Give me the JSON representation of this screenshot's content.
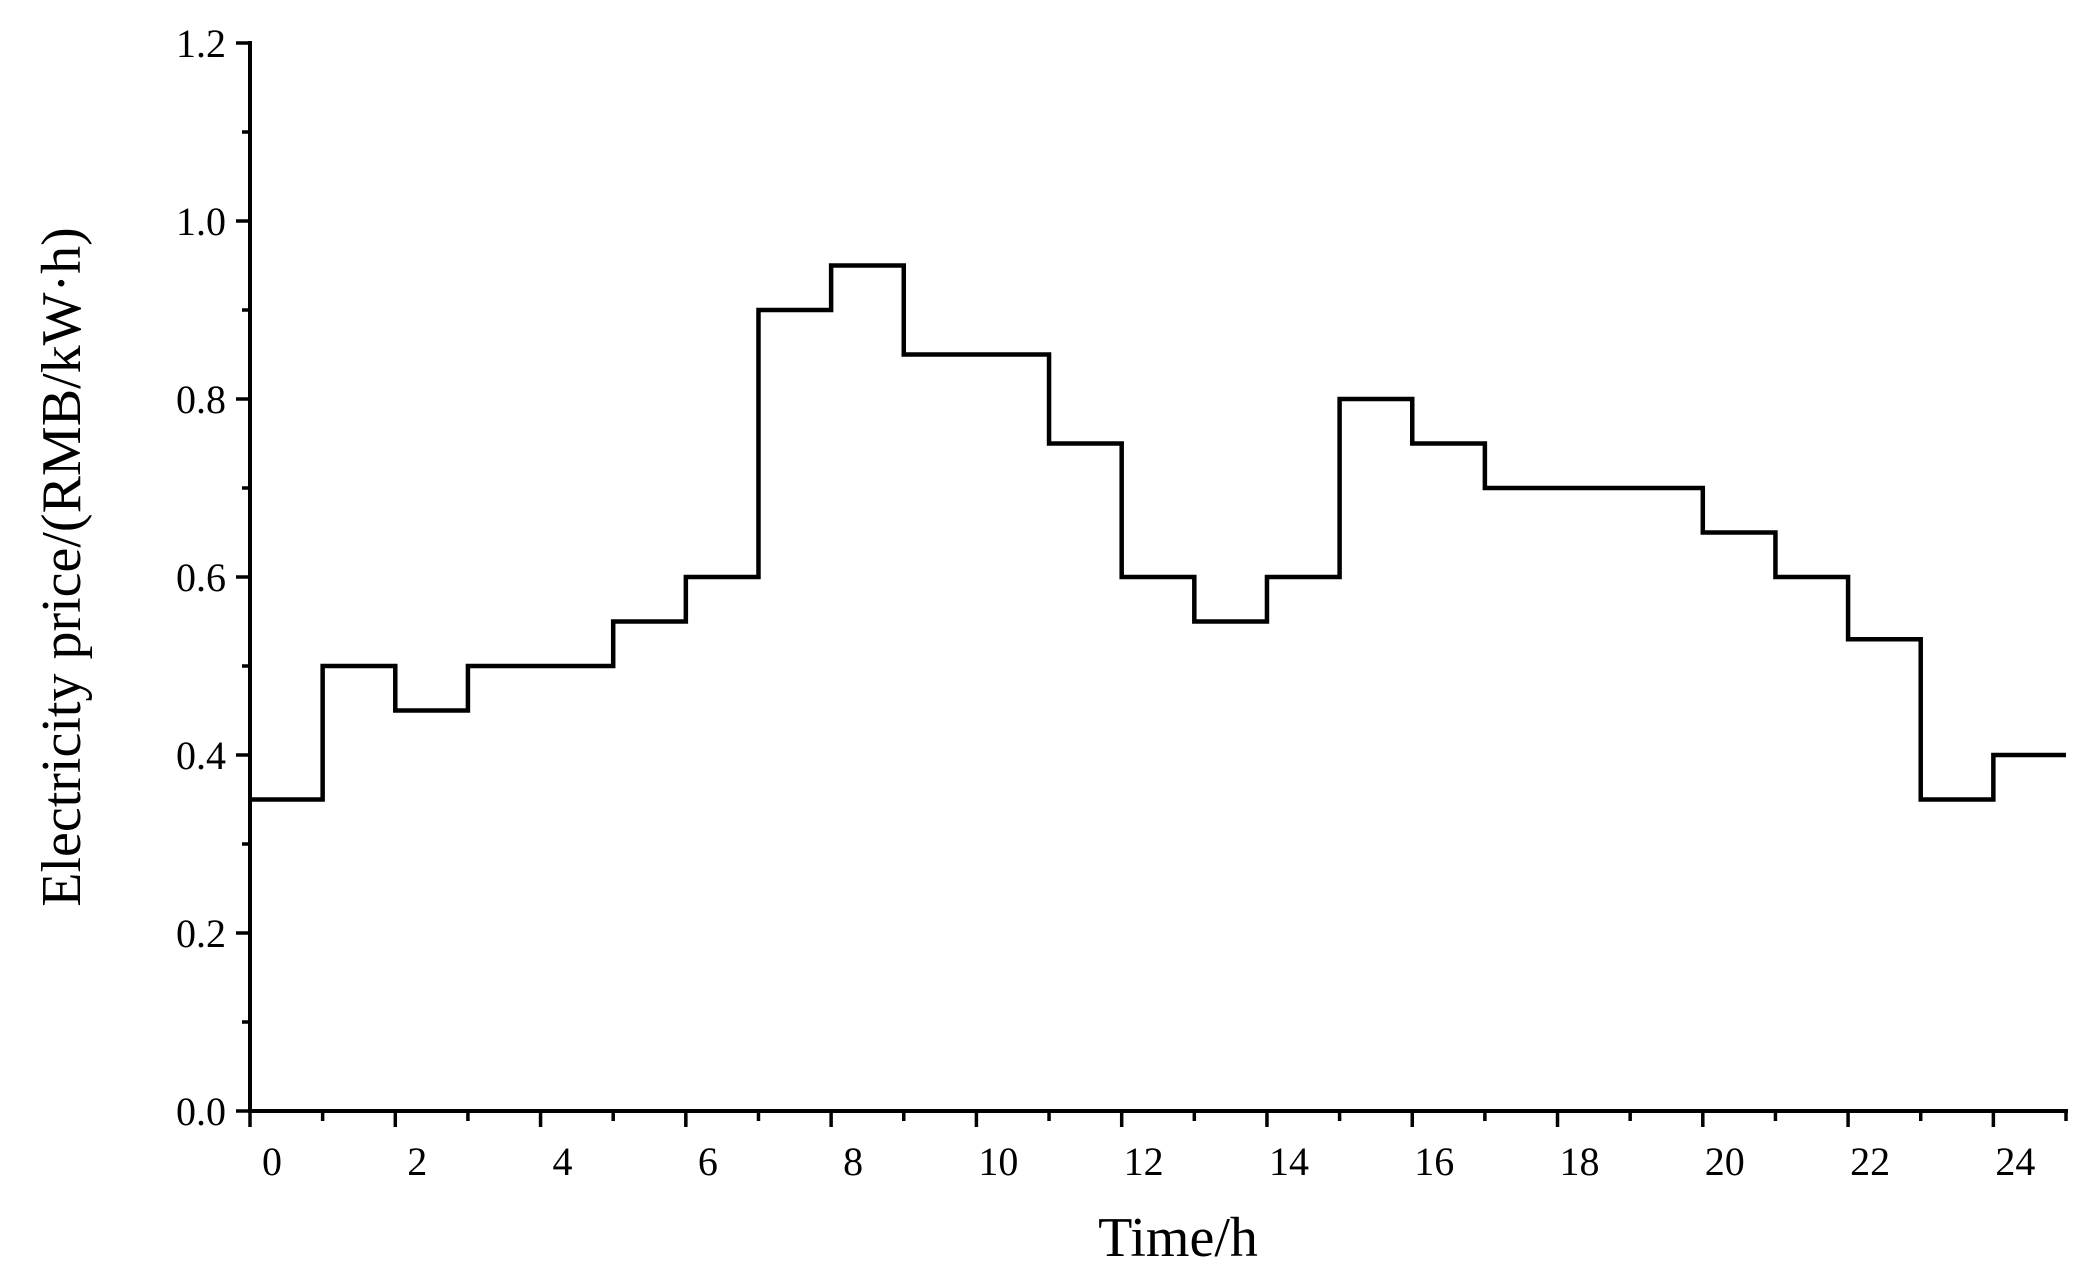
{
  "chart_data": {
    "type": "line",
    "step": true,
    "xlabel": "Time/h",
    "ylabel": "Electricity price/(RMB/kW·h)",
    "xlim": [
      0,
      25
    ],
    "ylim": [
      0,
      1.2
    ],
    "x_ticks": [
      0,
      2,
      4,
      6,
      8,
      10,
      12,
      14,
      16,
      18,
      20,
      22,
      24
    ],
    "x_tick_labels": [
      "0",
      "2",
      "4",
      "6",
      "8",
      "10",
      "12",
      "14",
      "16",
      "18",
      "20",
      "22",
      "24"
    ],
    "y_ticks": [
      0.0,
      0.2,
      0.4,
      0.6,
      0.8,
      1.0,
      1.2
    ],
    "y_tick_labels": [
      "0.0",
      "0.2",
      "0.4",
      "0.6",
      "0.8",
      "1.0",
      "1.2"
    ],
    "grid": false,
    "series": [
      {
        "x": [
          0,
          1,
          2,
          3,
          4,
          5,
          6,
          7,
          8,
          9,
          10,
          11,
          12,
          13,
          14,
          15,
          16,
          17,
          18,
          19,
          20,
          21,
          22,
          23,
          24
        ],
        "values": [
          0.35,
          0.5,
          0.45,
          0.5,
          0.5,
          0.55,
          0.6,
          0.9,
          0.95,
          0.85,
          0.85,
          0.75,
          0.6,
          0.55,
          0.6,
          0.8,
          0.75,
          0.7,
          0.7,
          0.7,
          0.65,
          0.6,
          0.53,
          0.35,
          0.4
        ],
        "color": "#000000"
      }
    ]
  }
}
